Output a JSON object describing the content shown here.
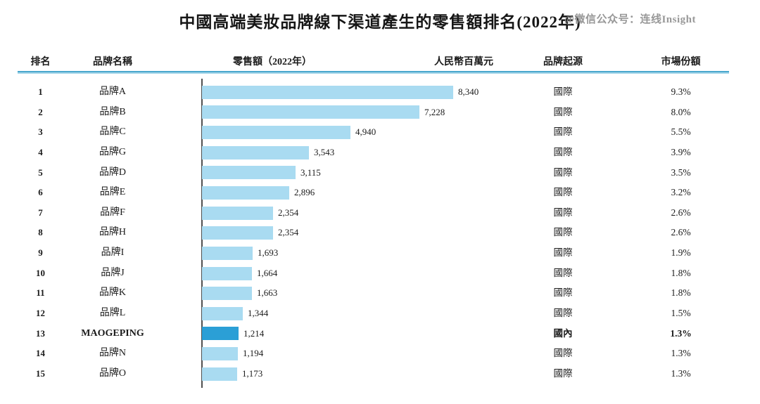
{
  "title": "中國高端美妝品牌線下渠道產生的零售額排名(2022年)",
  "watermark": "@微信公众号：连线Insight",
  "headers": {
    "rank": "排名",
    "brand": "品牌名稱",
    "retail": "零售額（2022年）",
    "unit": "人民幣百萬元",
    "origin": "品牌起源",
    "share": "市場份額"
  },
  "colors": {
    "bar": "#A9DBF1",
    "bar_highlight": "#2B9FD6",
    "rule_top": "#49A7CD",
    "rule_bottom": "#A5D6E9",
    "axis": "#4F4F4F"
  },
  "chart_data": {
    "type": "bar",
    "orientation": "horizontal",
    "title": "中國高端美妝品牌線下渠道產生的零售額排名(2022年)",
    "value_label": "零售額（2022年）",
    "unit_label": "人民幣百萬元",
    "xlim": [
      0,
      8340
    ],
    "rows": [
      {
        "rank": 1,
        "brand": "品牌A",
        "value": 8340,
        "value_text": "8,340",
        "origin": "國際",
        "share": "9.3%",
        "highlight": false
      },
      {
        "rank": 2,
        "brand": "品牌B",
        "value": 7228,
        "value_text": "7,228",
        "origin": "國際",
        "share": "8.0%",
        "highlight": false
      },
      {
        "rank": 3,
        "brand": "品牌C",
        "value": 4940,
        "value_text": "4,940",
        "origin": "國際",
        "share": "5.5%",
        "highlight": false
      },
      {
        "rank": 4,
        "brand": "品牌G",
        "value": 3543,
        "value_text": "3,543",
        "origin": "國際",
        "share": "3.9%",
        "highlight": false
      },
      {
        "rank": 5,
        "brand": "品牌D",
        "value": 3115,
        "value_text": "3,115",
        "origin": "國際",
        "share": "3.5%",
        "highlight": false
      },
      {
        "rank": 6,
        "brand": "品牌E",
        "value": 2896,
        "value_text": "2,896",
        "origin": "國際",
        "share": "3.2%",
        "highlight": false
      },
      {
        "rank": 7,
        "brand": "品牌F",
        "value": 2354,
        "value_text": "2,354",
        "origin": "國際",
        "share": "2.6%",
        "highlight": false
      },
      {
        "rank": 8,
        "brand": "品牌H",
        "value": 2354,
        "value_text": "2,354",
        "origin": "國際",
        "share": "2.6%",
        "highlight": false
      },
      {
        "rank": 9,
        "brand": "品牌I",
        "value": 1693,
        "value_text": "1,693",
        "origin": "國際",
        "share": "1.9%",
        "highlight": false
      },
      {
        "rank": 10,
        "brand": "品牌J",
        "value": 1664,
        "value_text": "1,664",
        "origin": "國際",
        "share": "1.8%",
        "highlight": false
      },
      {
        "rank": 11,
        "brand": "品牌K",
        "value": 1663,
        "value_text": "1,663",
        "origin": "國際",
        "share": "1.8%",
        "highlight": false
      },
      {
        "rank": 12,
        "brand": "品牌L",
        "value": 1344,
        "value_text": "1,344",
        "origin": "國際",
        "share": "1.5%",
        "highlight": false
      },
      {
        "rank": 13,
        "brand": "MAOGEPING",
        "value": 1214,
        "value_text": "1,214",
        "origin": "國內",
        "share": "1.3%",
        "highlight": true
      },
      {
        "rank": 14,
        "brand": "品牌N",
        "value": 1194,
        "value_text": "1,194",
        "origin": "國際",
        "share": "1.3%",
        "highlight": false
      },
      {
        "rank": 15,
        "brand": "品牌O",
        "value": 1173,
        "value_text": "1,173",
        "origin": "國際",
        "share": "1.3%",
        "highlight": false
      }
    ]
  }
}
